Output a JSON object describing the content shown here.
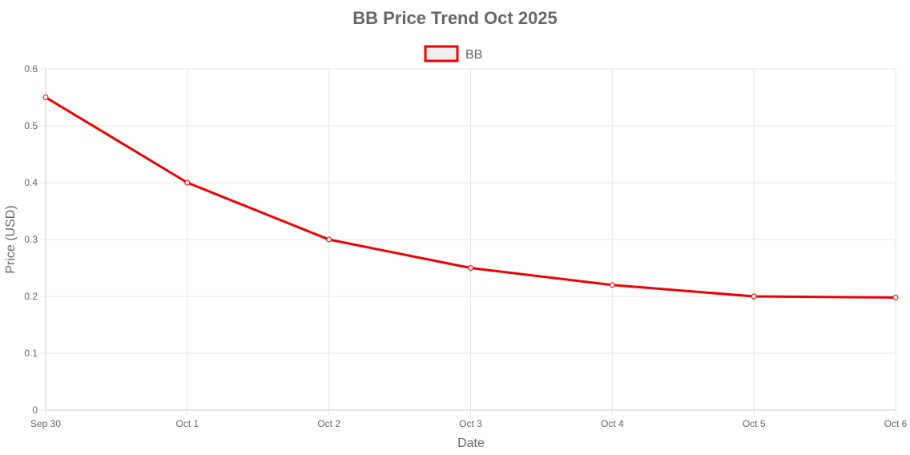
{
  "colors": {
    "series_line": "#ee0000",
    "legend_fill": "#eeeeee",
    "grid": "#e5e5e5",
    "text": "#666666"
  },
  "chart_data": {
    "type": "line",
    "title": "BB Price Trend Oct 2025",
    "xlabel": "Date",
    "ylabel": "Price (USD)",
    "x": [
      "Sep 30",
      "Oct 1",
      "Oct 2",
      "Oct 3",
      "Oct 4",
      "Oct 5",
      "Oct 6"
    ],
    "series": [
      {
        "name": "BB",
        "values": [
          0.55,
          0.4,
          0.3,
          0.25,
          0.22,
          0.2,
          0.198
        ]
      }
    ],
    "ylim": [
      0,
      0.6
    ],
    "yticks": [
      "0",
      "0.1",
      "0.2",
      "0.3",
      "0.4",
      "0.5",
      "0.6"
    ],
    "grid": true,
    "legend_position": "top-center"
  }
}
